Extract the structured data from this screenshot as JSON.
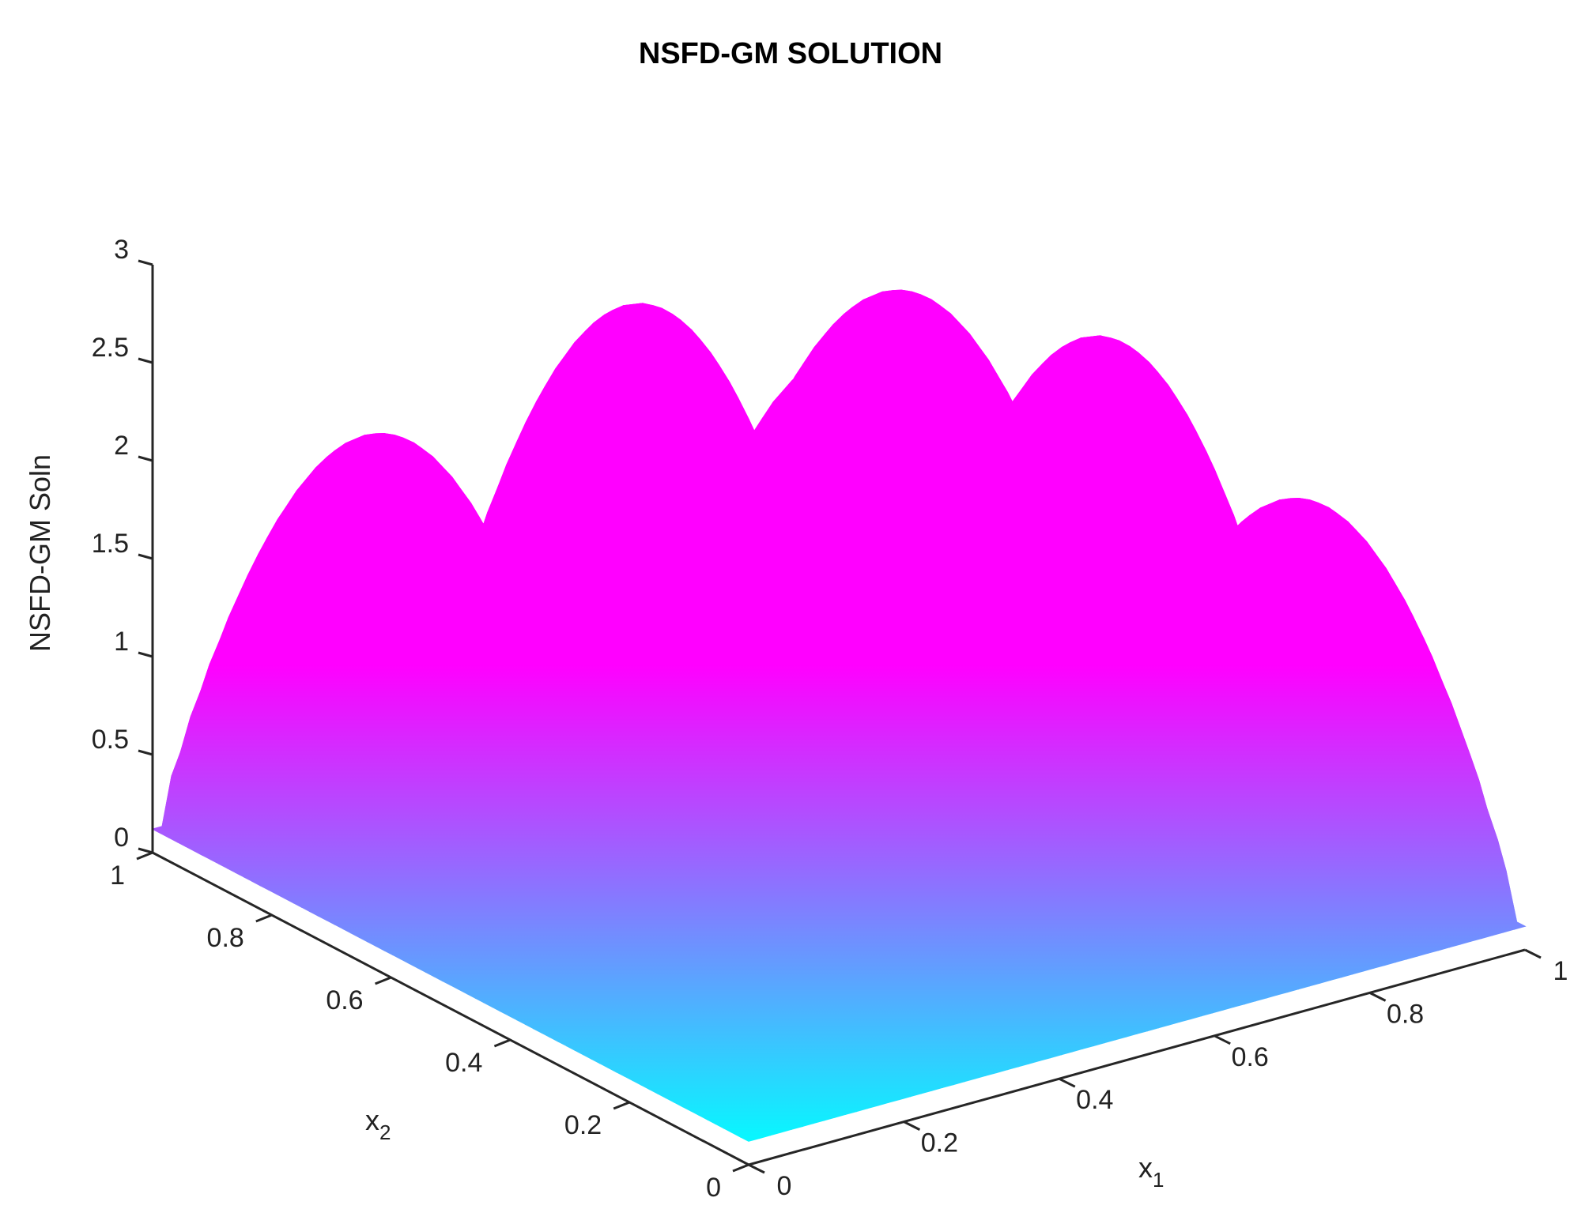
{
  "chart_data": {
    "type": "surface",
    "title": "NSFD-GM SOLUTION",
    "xlabel": "x",
    "xlabel_sub": "1",
    "ylabel": "x",
    "ylabel_sub": "2",
    "zlabel": "NSFD-GM Soln",
    "xlim": [
      0,
      1
    ],
    "ylim": [
      0,
      1
    ],
    "zlim": [
      0,
      3
    ],
    "x_ticks": [
      "0",
      "0.2",
      "0.4",
      "0.6",
      "0.8",
      "1"
    ],
    "y_ticks": [
      "0",
      "0.2",
      "0.4",
      "0.6",
      "0.8",
      "1"
    ],
    "z_ticks": [
      "0",
      "0.5",
      "1",
      "1.5",
      "2",
      "2.5",
      "3"
    ],
    "x_tick_values": [
      0,
      0.2,
      0.4,
      0.6,
      0.8,
      1
    ],
    "y_tick_values": [
      0,
      0.2,
      0.4,
      0.6,
      0.8,
      1
    ],
    "z_tick_values": [
      0,
      0.5,
      1,
      1.5,
      2,
      2.5,
      3
    ],
    "peaks": [
      {
        "x1": 0.1667,
        "x2": 0.1667,
        "z": 2.2
      },
      {
        "x1": 0.5,
        "x2": 0.1667,
        "z": 2.5
      },
      {
        "x1": 0.8333,
        "x2": 0.1667,
        "z": 2.2
      },
      {
        "x1": 0.1667,
        "x2": 0.5,
        "z": 2.5
      },
      {
        "x1": 0.5,
        "x2": 0.5,
        "z": 2.75
      },
      {
        "x1": 0.8333,
        "x2": 0.5,
        "z": 2.5
      },
      {
        "x1": 0.1667,
        "x2": 0.8333,
        "z": 2.2
      },
      {
        "x1": 0.5,
        "x2": 0.8333,
        "z": 2.5
      },
      {
        "x1": 0.8333,
        "x2": 0.8333,
        "z": 2.2
      }
    ],
    "colormap": [
      "#00ffff",
      "#ff00ff"
    ],
    "grid": false
  }
}
